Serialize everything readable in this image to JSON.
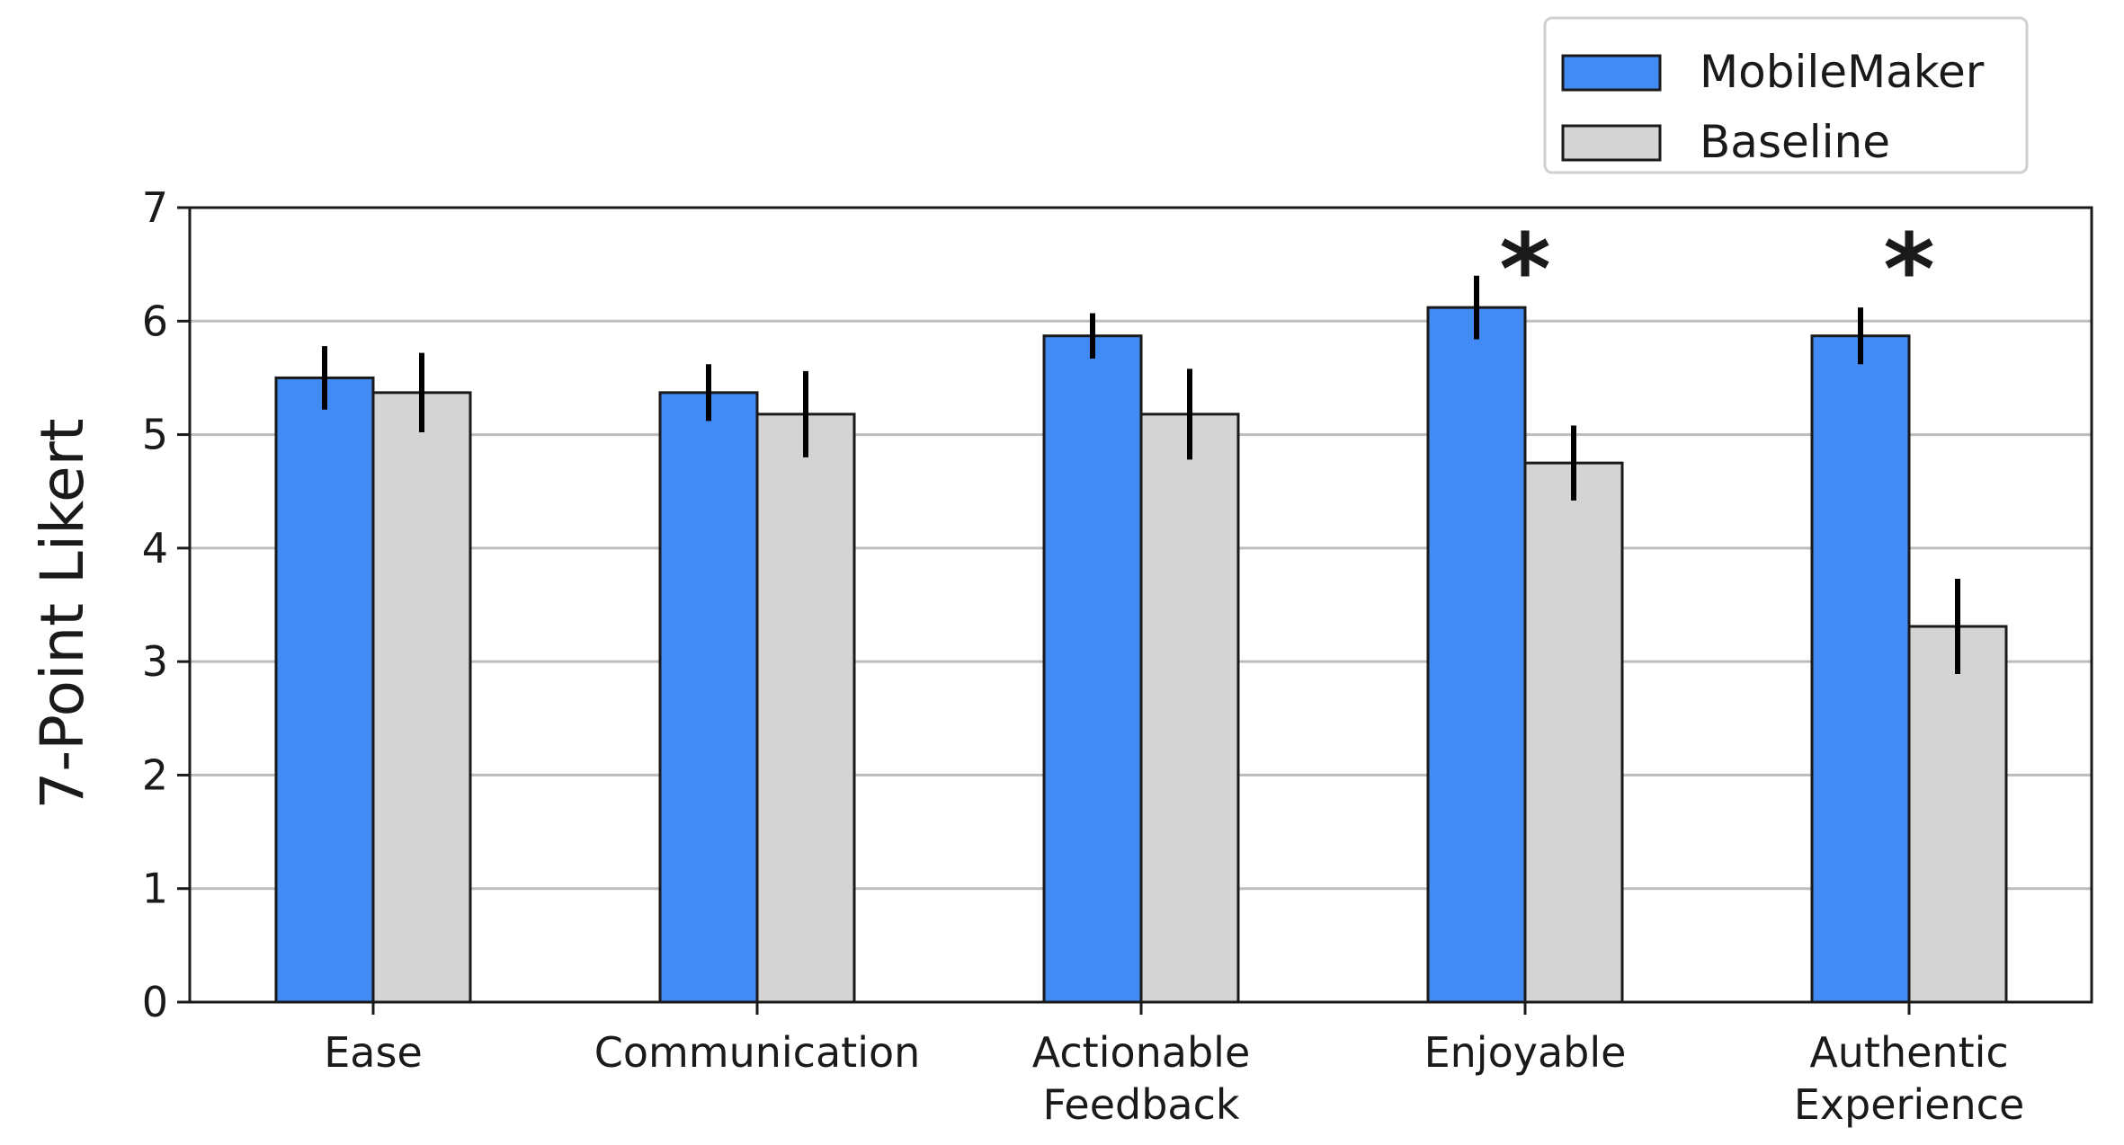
{
  "chart_data": {
    "type": "bar",
    "title": "",
    "xlabel": "",
    "ylabel": "7-Point Likert",
    "ylim": [
      0,
      7
    ],
    "yticks": [
      "0",
      "1",
      "2",
      "3",
      "4",
      "5",
      "6",
      "7"
    ],
    "grid": "horizontal",
    "legend_position": "top-right",
    "categories": [
      [
        "Ease"
      ],
      [
        "Communication"
      ],
      [
        "Actionable",
        "Feedback"
      ],
      [
        "Enjoyable"
      ],
      [
        "Authentic",
        "Experience"
      ]
    ],
    "series": [
      {
        "name": "MobileMaker",
        "color": "#428bf5",
        "values": [
          5.5,
          5.37,
          5.87,
          6.12,
          5.87
        ],
        "error": [
          0.28,
          0.25,
          0.2,
          0.28,
          0.25
        ]
      },
      {
        "name": "Baseline",
        "color": "#d4d4d4",
        "values": [
          5.37,
          5.18,
          5.18,
          4.75,
          3.31
        ],
        "error": [
          0.35,
          0.38,
          0.4,
          0.33,
          0.42
        ]
      }
    ],
    "annotations": [
      {
        "text": "*",
        "category_index": 3
      },
      {
        "text": "*",
        "category_index": 4
      }
    ]
  }
}
